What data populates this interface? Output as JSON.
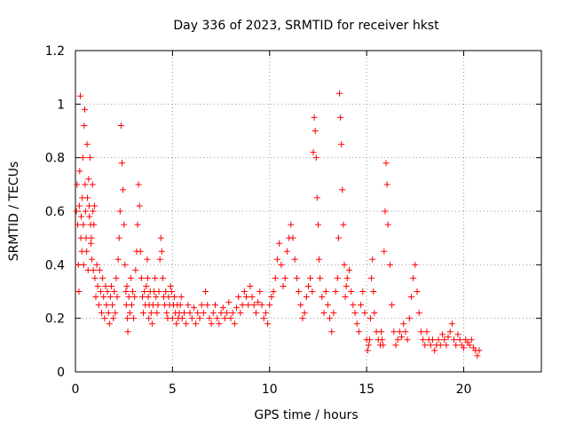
{
  "chart_data": {
    "type": "scatter",
    "title": "Day 336 of 2023, SRMTID for receiver hkst",
    "xlabel": "GPS time / hours",
    "ylabel": "SRMTID / TECUs",
    "xlim": [
      0,
      24
    ],
    "ylim": [
      0,
      1.2
    ],
    "xticks": [
      0,
      5,
      10,
      15,
      20
    ],
    "xtick_labels": [
      "0",
      "5",
      "10",
      "15",
      "20"
    ],
    "yticks": [
      0,
      0.2,
      0.4,
      0.6,
      0.8,
      1.0,
      1.2
    ],
    "ytick_labels": [
      "0",
      "0.2",
      "0.4",
      "0.6",
      "0.8",
      "1",
      "1.2"
    ],
    "grid": true,
    "marker": "+",
    "color": "#ff0000",
    "series": [
      {
        "name": "SRMTID",
        "x": [
          0.05,
          0.08,
          0.12,
          0.15,
          0.18,
          0.2,
          0.22,
          0.25,
          0.28,
          0.3,
          0.33,
          0.35,
          0.38,
          0.4,
          0.42,
          0.45,
          0.48,
          0.5,
          0.52,
          0.55,
          0.58,
          0.6,
          0.62,
          0.65,
          0.68,
          0.7,
          0.72,
          0.75,
          0.78,
          0.8,
          0.82,
          0.85,
          0.88,
          0.9,
          0.92,
          0.95,
          0.98,
          1.0,
          1.05,
          1.1,
          1.15,
          1.2,
          1.25,
          1.3,
          1.35,
          1.4,
          1.45,
          1.5,
          1.55,
          1.6,
          1.65,
          1.7,
          1.75,
          1.8,
          1.85,
          1.9,
          1.95,
          2.0,
          2.05,
          2.1,
          2.15,
          2.2,
          2.25,
          2.3,
          2.35,
          2.4,
          2.45,
          2.5,
          2.55,
          2.6,
          2.62,
          2.65,
          2.68,
          2.7,
          2.75,
          2.8,
          2.85,
          2.9,
          2.95,
          3.0,
          3.05,
          3.1,
          3.15,
          3.2,
          3.25,
          3.3,
          3.35,
          3.4,
          3.45,
          3.5,
          3.55,
          3.6,
          3.65,
          3.7,
          3.72,
          3.75,
          3.78,
          3.8,
          3.85,
          3.9,
          3.95,
          4.0,
          4.05,
          4.1,
          4.15,
          4.2,
          4.25,
          4.3,
          4.35,
          4.4,
          4.45,
          4.5,
          4.55,
          4.6,
          4.65,
          4.7,
          4.75,
          4.8,
          4.85,
          4.9,
          4.95,
          5.0,
          5.05,
          5.1,
          5.15,
          5.2,
          5.25,
          5.3,
          5.35,
          5.4,
          5.45,
          5.5,
          5.6,
          5.7,
          5.8,
          5.9,
          6.0,
          6.1,
          6.2,
          6.3,
          6.4,
          6.5,
          6.6,
          6.7,
          6.8,
          6.9,
          7.0,
          7.1,
          7.2,
          7.3,
          7.4,
          7.5,
          7.6,
          7.7,
          7.8,
          7.9,
          8.0,
          8.1,
          8.2,
          8.3,
          8.4,
          8.5,
          8.6,
          8.7,
          8.8,
          8.9,
          9.0,
          9.1,
          9.2,
          9.3,
          9.4,
          9.5,
          9.6,
          9.7,
          9.8,
          9.9,
          10.0,
          10.1,
          10.2,
          10.3,
          10.4,
          10.5,
          10.6,
          10.7,
          10.8,
          10.9,
          11.0,
          11.1,
          11.2,
          11.3,
          11.4,
          11.5,
          11.6,
          11.7,
          11.8,
          11.9,
          12.0,
          12.1,
          12.2,
          12.25,
          12.3,
          12.35,
          12.4,
          12.45,
          12.5,
          12.55,
          12.6,
          12.7,
          12.8,
          12.9,
          13.0,
          13.1,
          13.2,
          13.3,
          13.4,
          13.5,
          13.55,
          13.6,
          13.65,
          13.7,
          13.75,
          13.8,
          13.85,
          13.9,
          13.95,
          14.0,
          14.1,
          14.2,
          14.3,
          14.4,
          14.5,
          14.6,
          14.7,
          14.8,
          14.9,
          15.0,
          15.05,
          15.1,
          15.15,
          15.2,
          15.25,
          15.3,
          15.35,
          15.4,
          15.5,
          15.6,
          15.7,
          15.75,
          15.8,
          15.85,
          15.9,
          15.95,
          16.0,
          16.05,
          16.1,
          16.2,
          16.3,
          16.4,
          16.5,
          16.6,
          16.7,
          16.8,
          16.9,
          17.0,
          17.1,
          17.2,
          17.3,
          17.4,
          17.5,
          17.6,
          17.7,
          17.8,
          17.9,
          18.0,
          18.1,
          18.2,
          18.3,
          18.4,
          18.5,
          18.6,
          18.7,
          18.8,
          18.9,
          19.0,
          19.1,
          19.2,
          19.3,
          19.4,
          19.5,
          19.6,
          19.7,
          19.8,
          19.9,
          20.0,
          20.1,
          20.2,
          20.3,
          20.4,
          20.5,
          20.6,
          20.7,
          20.8
        ],
        "y": [
          0.6,
          0.7,
          0.55,
          0.4,
          0.3,
          0.62,
          0.75,
          1.03,
          0.5,
          0.58,
          0.45,
          0.65,
          0.8,
          0.55,
          0.4,
          0.92,
          0.98,
          0.7,
          0.6,
          0.5,
          0.45,
          0.85,
          0.65,
          0.38,
          0.72,
          0.62,
          0.58,
          0.8,
          0.55,
          0.48,
          0.5,
          0.42,
          0.7,
          0.6,
          0.38,
          0.55,
          0.62,
          0.35,
          0.28,
          0.4,
          0.32,
          0.25,
          0.38,
          0.3,
          0.22,
          0.35,
          0.28,
          0.2,
          0.32,
          0.25,
          0.3,
          0.22,
          0.18,
          0.28,
          0.32,
          0.25,
          0.2,
          0.3,
          0.22,
          0.35,
          0.28,
          0.42,
          0.5,
          0.6,
          0.92,
          0.78,
          0.68,
          0.55,
          0.4,
          0.3,
          0.25,
          0.32,
          0.2,
          0.15,
          0.28,
          0.22,
          0.35,
          0.25,
          0.3,
          0.2,
          0.28,
          0.38,
          0.45,
          0.55,
          0.7,
          0.62,
          0.45,
          0.35,
          0.28,
          0.22,
          0.3,
          0.25,
          0.32,
          0.42,
          0.35,
          0.28,
          0.2,
          0.25,
          0.3,
          0.22,
          0.18,
          0.25,
          0.3,
          0.35,
          0.28,
          0.22,
          0.25,
          0.3,
          0.42,
          0.5,
          0.45,
          0.35,
          0.28,
          0.25,
          0.3,
          0.22,
          0.2,
          0.28,
          0.25,
          0.32,
          0.3,
          0.2,
          0.25,
          0.28,
          0.22,
          0.18,
          0.25,
          0.2,
          0.22,
          0.25,
          0.28,
          0.2,
          0.22,
          0.18,
          0.25,
          0.22,
          0.2,
          0.24,
          0.18,
          0.22,
          0.2,
          0.25,
          0.22,
          0.3,
          0.25,
          0.2,
          0.18,
          0.22,
          0.25,
          0.2,
          0.18,
          0.22,
          0.24,
          0.2,
          0.22,
          0.26,
          0.2,
          0.22,
          0.18,
          0.24,
          0.28,
          0.22,
          0.25,
          0.3,
          0.28,
          0.25,
          0.32,
          0.28,
          0.25,
          0.22,
          0.26,
          0.3,
          0.25,
          0.2,
          0.22,
          0.18,
          0.25,
          0.28,
          0.3,
          0.35,
          0.42,
          0.48,
          0.4,
          0.32,
          0.35,
          0.45,
          0.5,
          0.55,
          0.5,
          0.42,
          0.35,
          0.3,
          0.25,
          0.2,
          0.22,
          0.28,
          0.32,
          0.35,
          0.3,
          0.82,
          0.95,
          0.9,
          0.8,
          0.65,
          0.55,
          0.42,
          0.35,
          0.28,
          0.22,
          0.3,
          0.25,
          0.2,
          0.15,
          0.22,
          0.3,
          0.35,
          0.5,
          1.04,
          0.95,
          0.85,
          0.68,
          0.55,
          0.4,
          0.28,
          0.32,
          0.35,
          0.38,
          0.3,
          0.25,
          0.22,
          0.18,
          0.15,
          0.25,
          0.3,
          0.22,
          0.12,
          0.08,
          0.1,
          0.12,
          0.2,
          0.35,
          0.42,
          0.3,
          0.22,
          0.15,
          0.12,
          0.1,
          0.15,
          0.12,
          0.1,
          0.45,
          0.6,
          0.78,
          0.7,
          0.55,
          0.4,
          0.25,
          0.15,
          0.1,
          0.12,
          0.15,
          0.13,
          0.18,
          0.15,
          0.12,
          0.2,
          0.28,
          0.35,
          0.4,
          0.3,
          0.22,
          0.15,
          0.12,
          0.1,
          0.15,
          0.12,
          0.1,
          0.12,
          0.08,
          0.1,
          0.12,
          0.1,
          0.14,
          0.12,
          0.1,
          0.13,
          0.15,
          0.18,
          0.12,
          0.1,
          0.14,
          0.12,
          0.1,
          0.09,
          0.12,
          0.11,
          0.1,
          0.12,
          0.09,
          0.08,
          0.06,
          0.08
        ]
      }
    ]
  }
}
